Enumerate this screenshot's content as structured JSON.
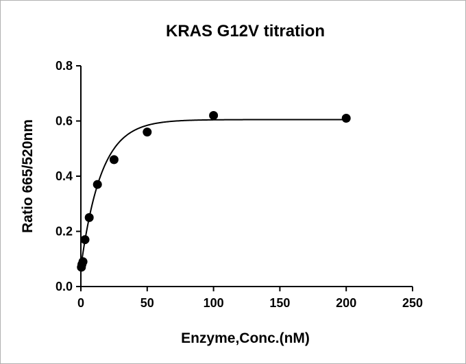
{
  "chart_data": {
    "type": "scatter",
    "title": "KRAS G12V titration",
    "xlabel": "Enzyme,Conc.(nM)",
    "ylabel": "Ratio 665/520nm",
    "xlim": [
      0,
      250
    ],
    "ylim": [
      0.0,
      0.8
    ],
    "xticks": [
      "0",
      "50",
      "100",
      "150",
      "200",
      "250"
    ],
    "yticks": [
      "0.0",
      "0.2",
      "0.4",
      "0.6",
      "0.8"
    ],
    "grid": false,
    "legend": "none",
    "series": [
      {
        "points": [
          {
            "x": 0.4,
            "y": 0.07
          },
          {
            "x": 0.8,
            "y": 0.08
          },
          {
            "x": 1.6,
            "y": 0.09
          },
          {
            "x": 3.1,
            "y": 0.17
          },
          {
            "x": 6.3,
            "y": 0.25
          },
          {
            "x": 12.5,
            "y": 0.37
          },
          {
            "x": 25,
            "y": 0.46
          },
          {
            "x": 50,
            "y": 0.56
          },
          {
            "x": 100,
            "y": 0.62
          },
          {
            "x": 200,
            "y": 0.61
          }
        ],
        "fit": {
          "model": "one-phase association",
          "y0": 0.07,
          "plateau": 0.605,
          "k": 0.065,
          "x_range": [
            0,
            200
          ]
        },
        "color": "#000000"
      }
    ]
  }
}
